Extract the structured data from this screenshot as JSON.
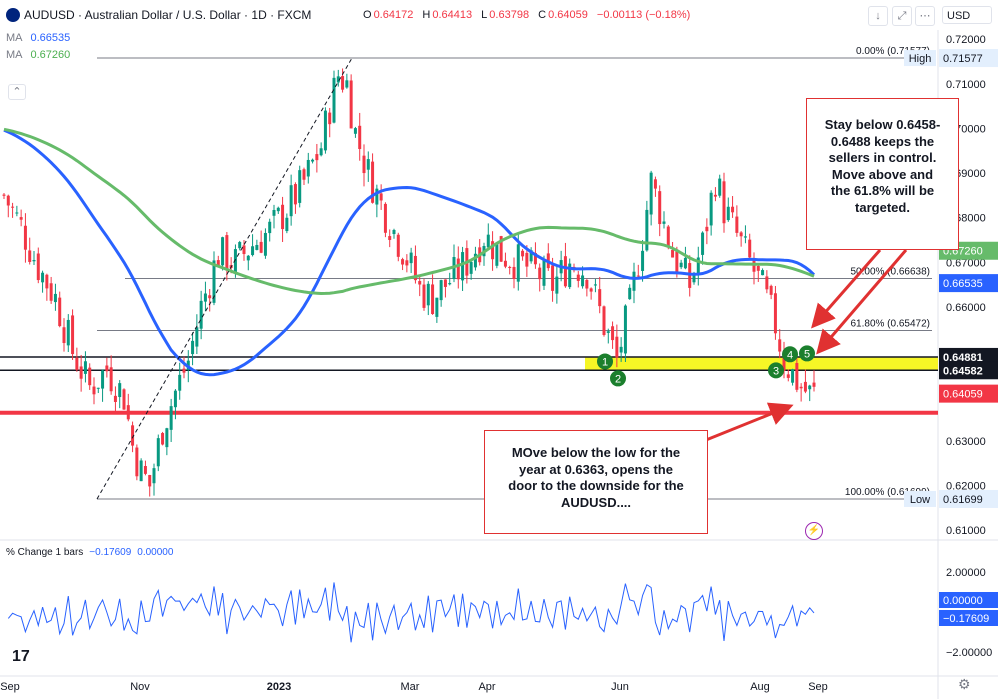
{
  "header": {
    "title": "AUDUSD · Australian Dollar / U.S. Dollar · 1D · FXCM",
    "ohlc": [
      {
        "label": "O",
        "value": "0.64172"
      },
      {
        "label": "H",
        "value": "0.64413"
      },
      {
        "label": "L",
        "value": "0.63798"
      },
      {
        "label": "C",
        "value": "0.64059"
      },
      {
        "label": "",
        "value": "−0.00113 (−0.18%)"
      }
    ],
    "currency": "USD",
    "ma1_label": "MA",
    "ma1_value": "0.66535",
    "ma2_label": "MA",
    "ma2_value": "0.67260",
    "colors": {
      "ma100": "#2962ff",
      "ma200": "#66bb6a",
      "up": "#089981",
      "down": "#f23645",
      "highlight": "#f5f500",
      "red_line": "#f23645"
    }
  },
  "indicator": {
    "label": "% Change 1 bars",
    "value1": "−0.17609",
    "value2": "0.00000"
  },
  "notes": {
    "stay": [
      "Stay below 0.6458-",
      "0.6488 keeps the",
      "sellers in control.",
      "Move above and",
      "the 61.8% will be",
      "targeted."
    ],
    "move": [
      "MOve below the low for the",
      "year at 0.6363, opens the",
      "door to the downside for the",
      "AUDUSD...."
    ]
  },
  "chart_data": {
    "type": "candlestick",
    "x_tick_labels": [
      "Sep",
      "Nov",
      "2023",
      "Mar",
      "Apr",
      "Jun",
      "Aug",
      "Sep"
    ],
    "y_tick_labels": [
      "0.72000",
      "0.71000",
      "0.70000",
      "0.69000",
      "0.68000",
      "0.67000",
      "0.66000",
      "0.65000",
      "0.64000",
      "0.63000",
      "0.62000",
      "0.61000"
    ],
    "ylim": [
      0.6078,
      0.7225
    ],
    "price_labels": [
      {
        "text": "High",
        "value": "0.71577"
      },
      {
        "text": "",
        "value": "0.66535"
      },
      {
        "text": "",
        "value": "0.67260"
      },
      {
        "text": "",
        "value": "0.64881"
      },
      {
        "text": "",
        "value": "0.64582"
      },
      {
        "text": "",
        "value": "0.64059"
      },
      {
        "text": "Low",
        "value": "0.61699"
      }
    ],
    "fib_levels": [
      {
        "label": "0.00% (0.71577)",
        "price": 0.71577
      },
      {
        "label": "50.00% (0.66638)",
        "price": 0.66638
      },
      {
        "label": "61.80% (0.65472)",
        "price": 0.65472
      },
      {
        "label": "100.00% (0.61699)",
        "price": 0.61699
      }
    ],
    "horizontal_lines": [
      {
        "name": "support-0.6488",
        "price": 0.64881
      },
      {
        "name": "support-0.6458",
        "price": 0.64582
      },
      {
        "name": "year-low-0.6363",
        "price": 0.6363
      }
    ],
    "highlight_zone": [
      0.64582,
      0.64881
    ],
    "markers": [
      "1",
      "2",
      "3",
      "4",
      "5"
    ],
    "close_path": [
      [
        0,
        0.685
      ],
      [
        4,
        0.678
      ],
      [
        8,
        0.669
      ],
      [
        12,
        0.662
      ],
      [
        16,
        0.65
      ],
      [
        20,
        0.642
      ],
      [
        24,
        0.646
      ],
      [
        28,
        0.64
      ],
      [
        30,
        0.629
      ],
      [
        32,
        0.623
      ],
      [
        34,
        0.62
      ],
      [
        37,
        0.633
      ],
      [
        40,
        0.641
      ],
      [
        43,
        0.648
      ],
      [
        46,
        0.66
      ],
      [
        50,
        0.672
      ],
      [
        54,
        0.67
      ],
      [
        58,
        0.674
      ],
      [
        62,
        0.677
      ],
      [
        66,
        0.682
      ],
      [
        70,
        0.688
      ],
      [
        74,
        0.696
      ],
      [
        76,
        0.705
      ],
      [
        78,
        0.712
      ],
      [
        80,
        0.71
      ],
      [
        82,
        0.699
      ],
      [
        85,
        0.69
      ],
      [
        88,
        0.683
      ],
      [
        91,
        0.677
      ],
      [
        94,
        0.671
      ],
      [
        97,
        0.664
      ],
      [
        100,
        0.662
      ],
      [
        104,
        0.666
      ],
      [
        108,
        0.67
      ],
      [
        112,
        0.676
      ],
      [
        116,
        0.672
      ],
      [
        120,
        0.67
      ],
      [
        124,
        0.668
      ],
      [
        128,
        0.665
      ],
      [
        132,
        0.67
      ],
      [
        136,
        0.668
      ],
      [
        140,
        0.656
      ],
      [
        143,
        0.648
      ],
      [
        146,
        0.66
      ],
      [
        149,
        0.676
      ],
      [
        151,
        0.688
      ],
      [
        153,
        0.682
      ],
      [
        156,
        0.672
      ],
      [
        160,
        0.665
      ],
      [
        163,
        0.674
      ],
      [
        166,
        0.689
      ],
      [
        168,
        0.682
      ],
      [
        171,
        0.676
      ],
      [
        174,
        0.67
      ],
      [
        177,
        0.664
      ],
      [
        180,
        0.656
      ],
      [
        182,
        0.648
      ],
      [
        184,
        0.645
      ],
      [
        186,
        0.642
      ],
      [
        188,
        0.6405
      ]
    ]
  }
}
